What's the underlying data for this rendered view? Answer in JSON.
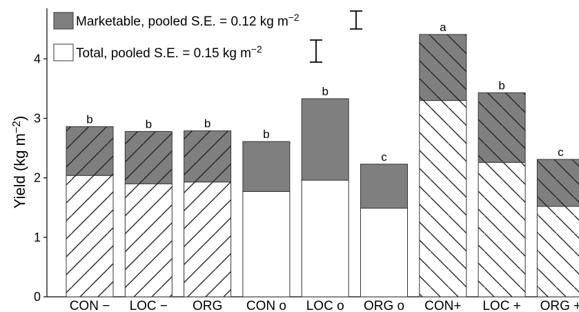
{
  "chart_data": {
    "type": "bar",
    "ylabel": "Yield (kg m−2)",
    "ylim": [
      0,
      4.85
    ],
    "yticks": [
      "0",
      "1",
      "2",
      "3",
      "4"
    ],
    "grid": false,
    "legend_position": "top-left",
    "categories": [
      "CON −",
      "LOC −",
      "ORG",
      "CON o",
      "LOC o",
      "ORG o",
      "CON+",
      "LOC +",
      "ORG +"
    ],
    "series": [
      {
        "name": "Total, pooled S.E. = 0.15 kg m−2",
        "values": [
          2.04,
          1.9,
          1.93,
          1.77,
          1.96,
          1.49,
          3.3,
          2.26,
          1.52
        ]
      },
      {
        "name": "Marketable, pooled S.E. = 0.12 kg m−2",
        "values": [
          0.82,
          0.88,
          0.86,
          0.84,
          1.37,
          0.74,
          1.11,
          1.17,
          0.79
        ]
      }
    ],
    "totals": [
      2.86,
      2.78,
      2.79,
      2.61,
      3.33,
      2.23,
      4.41,
      3.43,
      2.31
    ],
    "significance_letters": [
      "b",
      "b",
      "b",
      "b",
      "b",
      "c",
      "a",
      "b",
      "c"
    ],
    "hatch": [
      "forward",
      "forward",
      "forward",
      "none",
      "none",
      "none",
      "back",
      "back",
      "back"
    ],
    "colors": {
      "marketable": "#7f7f7f",
      "total": "#ffffff",
      "outline": "#333333"
    }
  },
  "legend": [
    {
      "label": "Marketable, pooled S.E. = 0.12 kg m−2",
      "se": 0.12,
      "fill": "#7f7f7f"
    },
    {
      "label": "Total, pooled S.E. = 0.15 kg m−2",
      "se": 0.15,
      "fill": "#ffffff"
    }
  ]
}
